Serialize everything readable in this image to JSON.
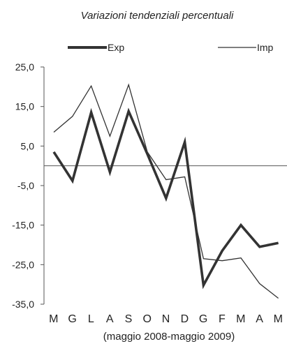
{
  "chart_data": {
    "type": "line",
    "title": "Variazioni tendenziali percentuali",
    "subtitle": "(maggio 2008-maggio 2009)",
    "categories": [
      "M",
      "G",
      "L",
      "A",
      "S",
      "O",
      "N",
      "D",
      "G",
      "F",
      "M",
      "A",
      "M"
    ],
    "ylim": [
      -35,
      25
    ],
    "yticks": [
      "25,0",
      "15,0",
      "5,0",
      "-5,0",
      "-15,0",
      "-25,0",
      "-35,0"
    ],
    "ytick_values": [
      25,
      15,
      5,
      -5,
      -15,
      -25,
      -35
    ],
    "legend_position": "top",
    "grid": false,
    "series": [
      {
        "name": "Exp",
        "values": [
          3.5,
          -3.8,
          13.5,
          -1.6,
          13.8,
          3.0,
          -8.2,
          6.0,
          -30.2,
          -21.5,
          -15.0,
          -20.5,
          -19.5
        ],
        "color": "#333333",
        "style": "thick"
      },
      {
        "name": "Imp",
        "values": [
          8.5,
          12.5,
          20.2,
          7.5,
          20.5,
          3.5,
          -3.5,
          -2.8,
          -23.5,
          -24.0,
          -23.3,
          -29.8,
          -33.5
        ],
        "color": "#333333",
        "style": "thin"
      }
    ]
  }
}
